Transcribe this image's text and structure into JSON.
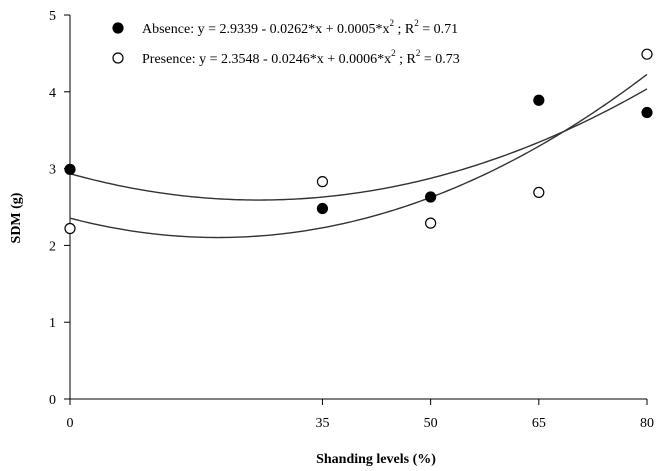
{
  "chart_data": {
    "type": "scatter",
    "xlabel": "Shanding levels (%)",
    "ylabel": "SDM (g)",
    "xlim": [
      0,
      80
    ],
    "ylim": [
      0,
      5
    ],
    "x_ticks": [
      0,
      35,
      50,
      65,
      80
    ],
    "y_ticks": [
      0,
      1,
      2,
      3,
      4,
      5
    ],
    "grid": false,
    "legend_position": "top-left",
    "series": [
      {
        "name": "Absence",
        "marker": "filled-circle",
        "color": "#000000",
        "x": [
          0,
          35,
          50,
          65,
          80
        ],
        "y": [
          2.99,
          2.48,
          2.63,
          3.89,
          3.73
        ],
        "fit": {
          "intercept": 2.9339,
          "b1": -0.0262,
          "b2": 0.0005,
          "r2": 0.71
        },
        "legend_parts": {
          "name": "Absence",
          "equation": ": y = 2.9339 - 0.0262*x + 0.0005*x",
          "exponent": "2",
          "r2_prefix": " ; R",
          "r2_value": " = 0.71"
        }
      },
      {
        "name": "Presence",
        "marker": "open-circle",
        "color": "#000000",
        "x": [
          0,
          35,
          50,
          65,
          80
        ],
        "y": [
          2.22,
          2.83,
          2.29,
          2.69,
          4.49
        ],
        "fit": {
          "intercept": 2.3548,
          "b1": -0.0246,
          "b2": 0.0006,
          "r2": 0.73
        },
        "legend_parts": {
          "name": "Presence",
          "equation": ": y = 2.3548 - 0.0246*x + 0.0006*x",
          "exponent": "2",
          "r2_prefix": " ; R",
          "r2_value": " = 0.73"
        }
      }
    ]
  }
}
